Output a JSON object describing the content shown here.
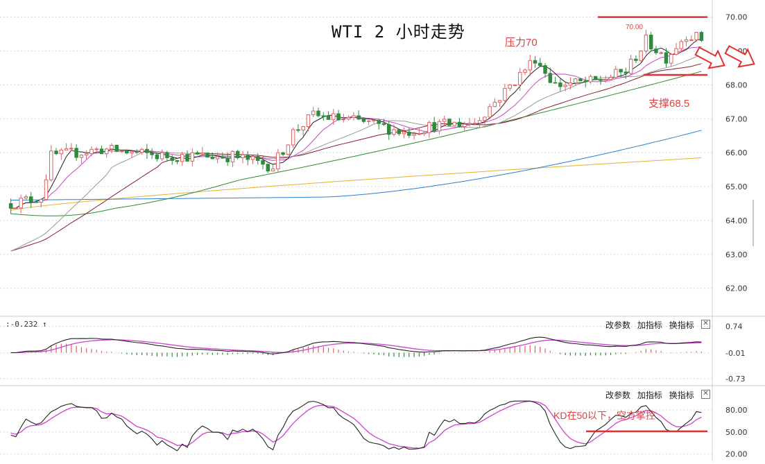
{
  "title": "WTI 2 小时走势",
  "annotations": {
    "resistance": "压力70",
    "support": "支撑68.5",
    "kd_note": "KD在50以下，空方掌控",
    "top_price_mark": "70.00"
  },
  "panel_menu": {
    "params": "改参数",
    "add": "加指标",
    "change": "换指标",
    "close": "✕"
  },
  "macd_readout": ":-0.232 ↑",
  "colors": {
    "up": "#e06060",
    "down": "#2e8b3e",
    "ma5": "#222222",
    "ma10": "#d040d0",
    "ma20": "#999999",
    "ma30": "#8b1a2a",
    "ma60": "#2e8b2e",
    "ma120": "#2a7fd0",
    "ma250": "#e8b030",
    "annotation": "#e03030",
    "grid": "#d8d8d8"
  },
  "chart_data": [
    {
      "type": "candlestick",
      "name": "price",
      "y_ticks": [
        "70.00",
        "69.00",
        "68.00",
        "67.00",
        "66.00",
        "65.00",
        "64.00",
        "63.00",
        "62.00"
      ],
      "ylim": [
        61.4,
        70.3
      ],
      "n_bars": 138,
      "ohlc": [],
      "moving_averages": {
        "ma5": [],
        "ma10": [],
        "ma20": [],
        "ma30": [],
        "ma60": [],
        "ma120": [],
        "ma250": []
      },
      "resistance": 70.0,
      "support": 68.5
    },
    {
      "type": "line+bar",
      "name": "MACD",
      "y_ticks": [
        "0.74",
        "-0.01",
        "-0.73"
      ],
      "ylim": [
        -0.85,
        0.85
      ]
    },
    {
      "type": "line",
      "name": "KD",
      "y_ticks": [
        "80.00",
        "50.00",
        "20.00"
      ],
      "ylim": [
        15,
        95
      ],
      "reference": 50
    }
  ]
}
